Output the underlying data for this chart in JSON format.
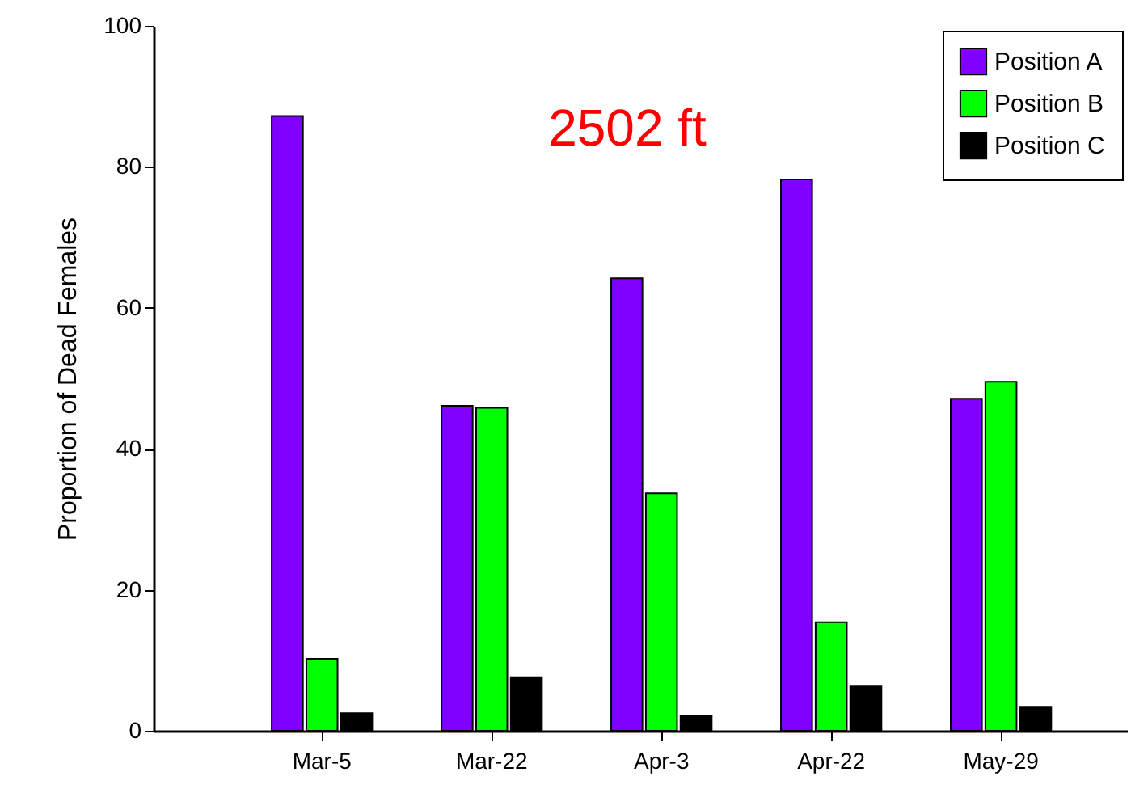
{
  "chart_data": {
    "type": "bar",
    "annotations": [
      "2502 ft"
    ],
    "ylabel": "Proportion of Dead Females",
    "categories": [
      "Mar-5",
      "Mar-22",
      "Apr-3",
      "Apr-22",
      "May-29"
    ],
    "series": [
      {
        "name": "Position A",
        "color": "#8000ff",
        "values": [
          87.2,
          46.1,
          64.2,
          78.2,
          47.1
        ]
      },
      {
        "name": "Position B",
        "color": "#00ff00",
        "values": [
          10.2,
          45.8,
          33.7,
          15.4,
          49.5
        ]
      },
      {
        "name": "Position C",
        "color": "#000000",
        "values": [
          2.5,
          7.6,
          2.1,
          6.4,
          3.4
        ]
      }
    ],
    "ylim": [
      0,
      100
    ],
    "yticks": [
      0,
      20,
      40,
      60,
      80,
      100
    ],
    "legend": "top right"
  }
}
